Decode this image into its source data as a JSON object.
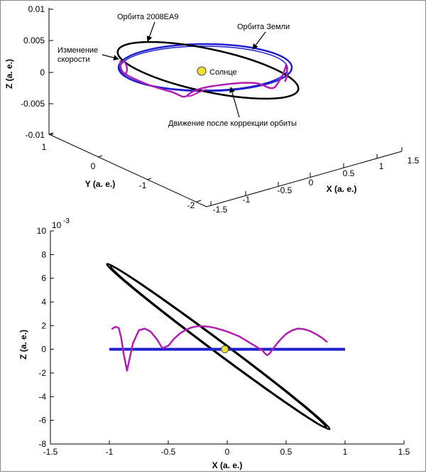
{
  "chart_data": [
    {
      "type": "line",
      "view": "3d",
      "x_axis": {
        "label": "X (a. e.)",
        "ticks": [
          "-1.5",
          "-1",
          "-0.5",
          "0",
          "0.5",
          "1",
          "1.5"
        ]
      },
      "y_axis": {
        "label": "Y (a. e.)",
        "ticks": [
          "1",
          "0",
          "-1",
          "-2"
        ]
      },
      "z_axis": {
        "label": "Z (a. e.)",
        "ticks": [
          "0.01",
          "0.005",
          "0",
          "-0.005",
          "-0.01"
        ]
      },
      "annotations": {
        "orbit_2008ea9": "Орбита 2008EA9",
        "orbit_earth": "Орбита Земли",
        "speed_change": "Изменение\nскорости",
        "sun": "Солнце",
        "after_correction": "Движение после коррекции орбиты"
      },
      "series_colors": {
        "orbit_2008ea9": "#000000",
        "orbit_earth": "#1f1fd0",
        "trajectory": "#b020b0",
        "sun": "#f0e030"
      }
    },
    {
      "type": "line",
      "view": "x-z projection",
      "x_axis": {
        "label": "X (a. e.)",
        "ticks": [
          "-1.5",
          "-1",
          "-0.5",
          "0",
          "0.5",
          "1",
          "1.5"
        ],
        "range": [
          -1.5,
          1.5
        ]
      },
      "y_axis": {
        "label": "Z (a. e.)",
        "exponent_label": "10",
        "exponent": "-3",
        "ticks": [
          "-8",
          "-6",
          "-4",
          "-2",
          "0",
          "2",
          "4",
          "6",
          "8",
          "10"
        ],
        "range": [
          -8,
          10
        ]
      },
      "orbit_2008ea9": {
        "center": [
          -0.09,
          0.3
        ],
        "semi_axis_x": 0.93,
        "semi_axis_z": 8.0,
        "tilt_z_per_x": -7.4
      },
      "orbit_earth": {
        "x_range": [
          -1.0,
          1.0
        ],
        "z": 0
      },
      "sun": {
        "x": -0.02,
        "z": 0
      },
      "trajectory": {
        "x": [
          -0.98,
          -0.95,
          -0.92,
          -0.9,
          -0.88,
          -0.85,
          -0.8,
          -0.75,
          -0.7,
          -0.65,
          -0.6,
          -0.55,
          -0.5,
          -0.45,
          -0.4,
          -0.35,
          -0.3,
          -0.25,
          -0.2,
          -0.15,
          -0.1,
          -0.05,
          0.0,
          0.05,
          0.1,
          0.15,
          0.2,
          0.25,
          0.3,
          0.32,
          0.34,
          0.36,
          0.4,
          0.45,
          0.5,
          0.55,
          0.6,
          0.65,
          0.7,
          0.75,
          0.8,
          0.85
        ],
        "z": [
          1.7,
          1.9,
          1.8,
          1.0,
          -0.3,
          -1.8,
          0.5,
          1.6,
          1.75,
          1.5,
          0.9,
          0.1,
          0.3,
          0.9,
          1.35,
          1.65,
          1.85,
          1.95,
          1.95,
          1.9,
          1.8,
          1.65,
          1.5,
          1.3,
          1.1,
          0.8,
          0.5,
          0.2,
          -0.1,
          -0.35,
          -0.5,
          -0.35,
          0.2,
          0.8,
          1.3,
          1.6,
          1.75,
          1.7,
          1.55,
          1.3,
          1.0,
          0.6
        ]
      },
      "series_colors": {
        "orbit_2008ea9": "#000000",
        "orbit_earth": "#1f1fd0",
        "trajectory": "#b020b0",
        "sun": "#f0e030"
      }
    }
  ]
}
